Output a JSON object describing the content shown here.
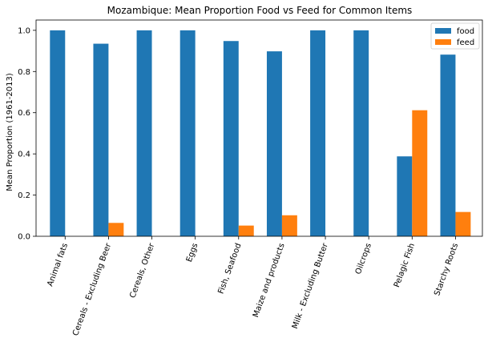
{
  "chart_data": {
    "type": "bar",
    "title": "Mozambique: Mean Proportion Food vs Feed for Common Items",
    "xlabel": "",
    "ylabel": "Mean Proportion (1961-2013)",
    "ylim": [
      0,
      1.05
    ],
    "yticks": [
      "0.0",
      "0.2",
      "0.4",
      "0.6",
      "0.8",
      "1.0"
    ],
    "categories": [
      "Animal fats",
      "Cereals - Excluding Beer",
      "Cereals, Other",
      "Eggs",
      "Fish, Seafood",
      "Maize and products",
      "Milk - Excluding Butter",
      "Oilcrops",
      "Pelagic Fish",
      "Starchy Roots"
    ],
    "series": [
      {
        "name": "food",
        "color": "#1f77b4",
        "values": [
          1.0,
          0.935,
          1.0,
          1.0,
          0.948,
          0.898,
          1.0,
          1.0,
          0.388,
          0.882
        ]
      },
      {
        "name": "feed",
        "color": "#ff7f0e",
        "values": [
          0.0,
          0.065,
          0.0,
          0.0,
          0.052,
          0.102,
          0.0,
          0.0,
          0.612,
          0.118
        ]
      }
    ],
    "legend_position": "top-right",
    "grid": false
  }
}
